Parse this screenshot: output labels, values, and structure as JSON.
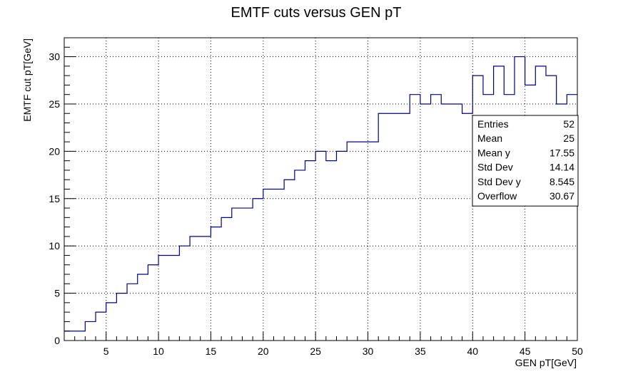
{
  "chart_data": {
    "type": "step",
    "title": "EMTF cuts versus GEN pT",
    "xlabel": "GEN pT[GeV]",
    "ylabel": "EMTF cut pT[GeV]",
    "xlim": [
      1,
      50
    ],
    "ylim": [
      0,
      32
    ],
    "grid": true,
    "x_ticks": [
      5,
      10,
      15,
      20,
      25,
      30,
      35,
      40,
      45,
      50
    ],
    "y_ticks": [
      0,
      5,
      10,
      15,
      20,
      25,
      30
    ],
    "line_color": "#00008b",
    "bin_edges": [
      1,
      3,
      4,
      5,
      6,
      7,
      8,
      9,
      10,
      12,
      13,
      15,
      16,
      17,
      19,
      20,
      22,
      23,
      24,
      25,
      26,
      27,
      28,
      31,
      34,
      35,
      36,
      37,
      39,
      40,
      41,
      42,
      43,
      44,
      45,
      46,
      47,
      48,
      49,
      50
    ],
    "values": [
      1,
      2,
      3,
      4,
      5,
      6,
      7,
      8,
      9,
      10,
      11,
      12,
      13,
      14,
      15,
      16,
      17,
      18,
      19,
      20,
      19,
      20,
      21,
      24,
      26,
      25,
      26,
      25,
      24,
      28,
      26,
      29,
      26,
      30,
      27,
      29,
      28,
      25,
      26
    ],
    "stats": [
      {
        "label": "Entries",
        "value": "52"
      },
      {
        "label": "Mean",
        "value": "25"
      },
      {
        "label": "Mean y",
        "value": "17.55"
      },
      {
        "label": "Std Dev",
        "value": "14.14"
      },
      {
        "label": "Std Dev y",
        "value": "8.545"
      },
      {
        "label": "Overflow",
        "value": "30.67"
      }
    ]
  }
}
